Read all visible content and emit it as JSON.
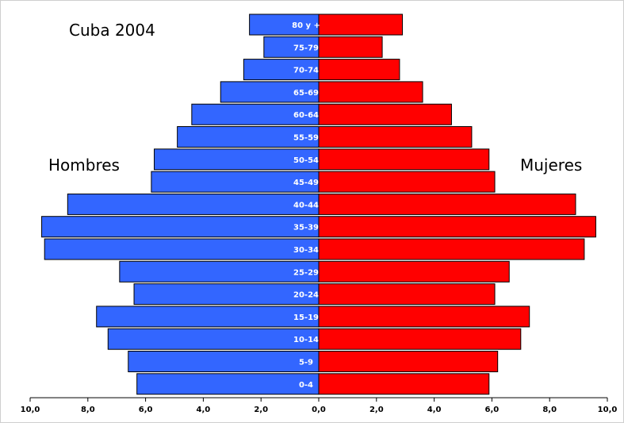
{
  "chart_data": {
    "type": "bar",
    "orientation": "horizontal-pyramid",
    "title": "Cuba 2004",
    "categories": [
      "80 y +",
      "75-79",
      "70-74",
      "65-69",
      "60-64",
      "55-59",
      "50-54",
      "45-49",
      "40-44",
      "35-39",
      "30-34",
      "25-29",
      "20-24",
      "15-19",
      "10-14",
      "5-9",
      "0-4"
    ],
    "series": [
      {
        "name": "Hombres",
        "values": [
          2.4,
          1.9,
          2.6,
          3.4,
          4.4,
          4.9,
          5.7,
          5.8,
          8.7,
          9.6,
          9.5,
          6.9,
          6.4,
          7.7,
          7.3,
          6.6,
          6.3
        ]
      },
      {
        "name": "Mujeres",
        "values": [
          2.9,
          2.2,
          2.8,
          3.6,
          4.6,
          5.3,
          5.9,
          6.1,
          8.9,
          9.6,
          9.2,
          6.6,
          6.1,
          7.3,
          7.0,
          6.2,
          5.9
        ]
      }
    ],
    "xlim": [
      -10,
      10
    ],
    "x_ticks": [
      "10,0",
      "8,0",
      "6,0",
      "4,0",
      "2,0",
      "0,0",
      "2,0",
      "4,0",
      "6,0",
      "8,0",
      "10,0"
    ],
    "colors": {
      "Hombres": "#3366ff",
      "Mujeres": "#ff0000"
    },
    "grid": false
  }
}
